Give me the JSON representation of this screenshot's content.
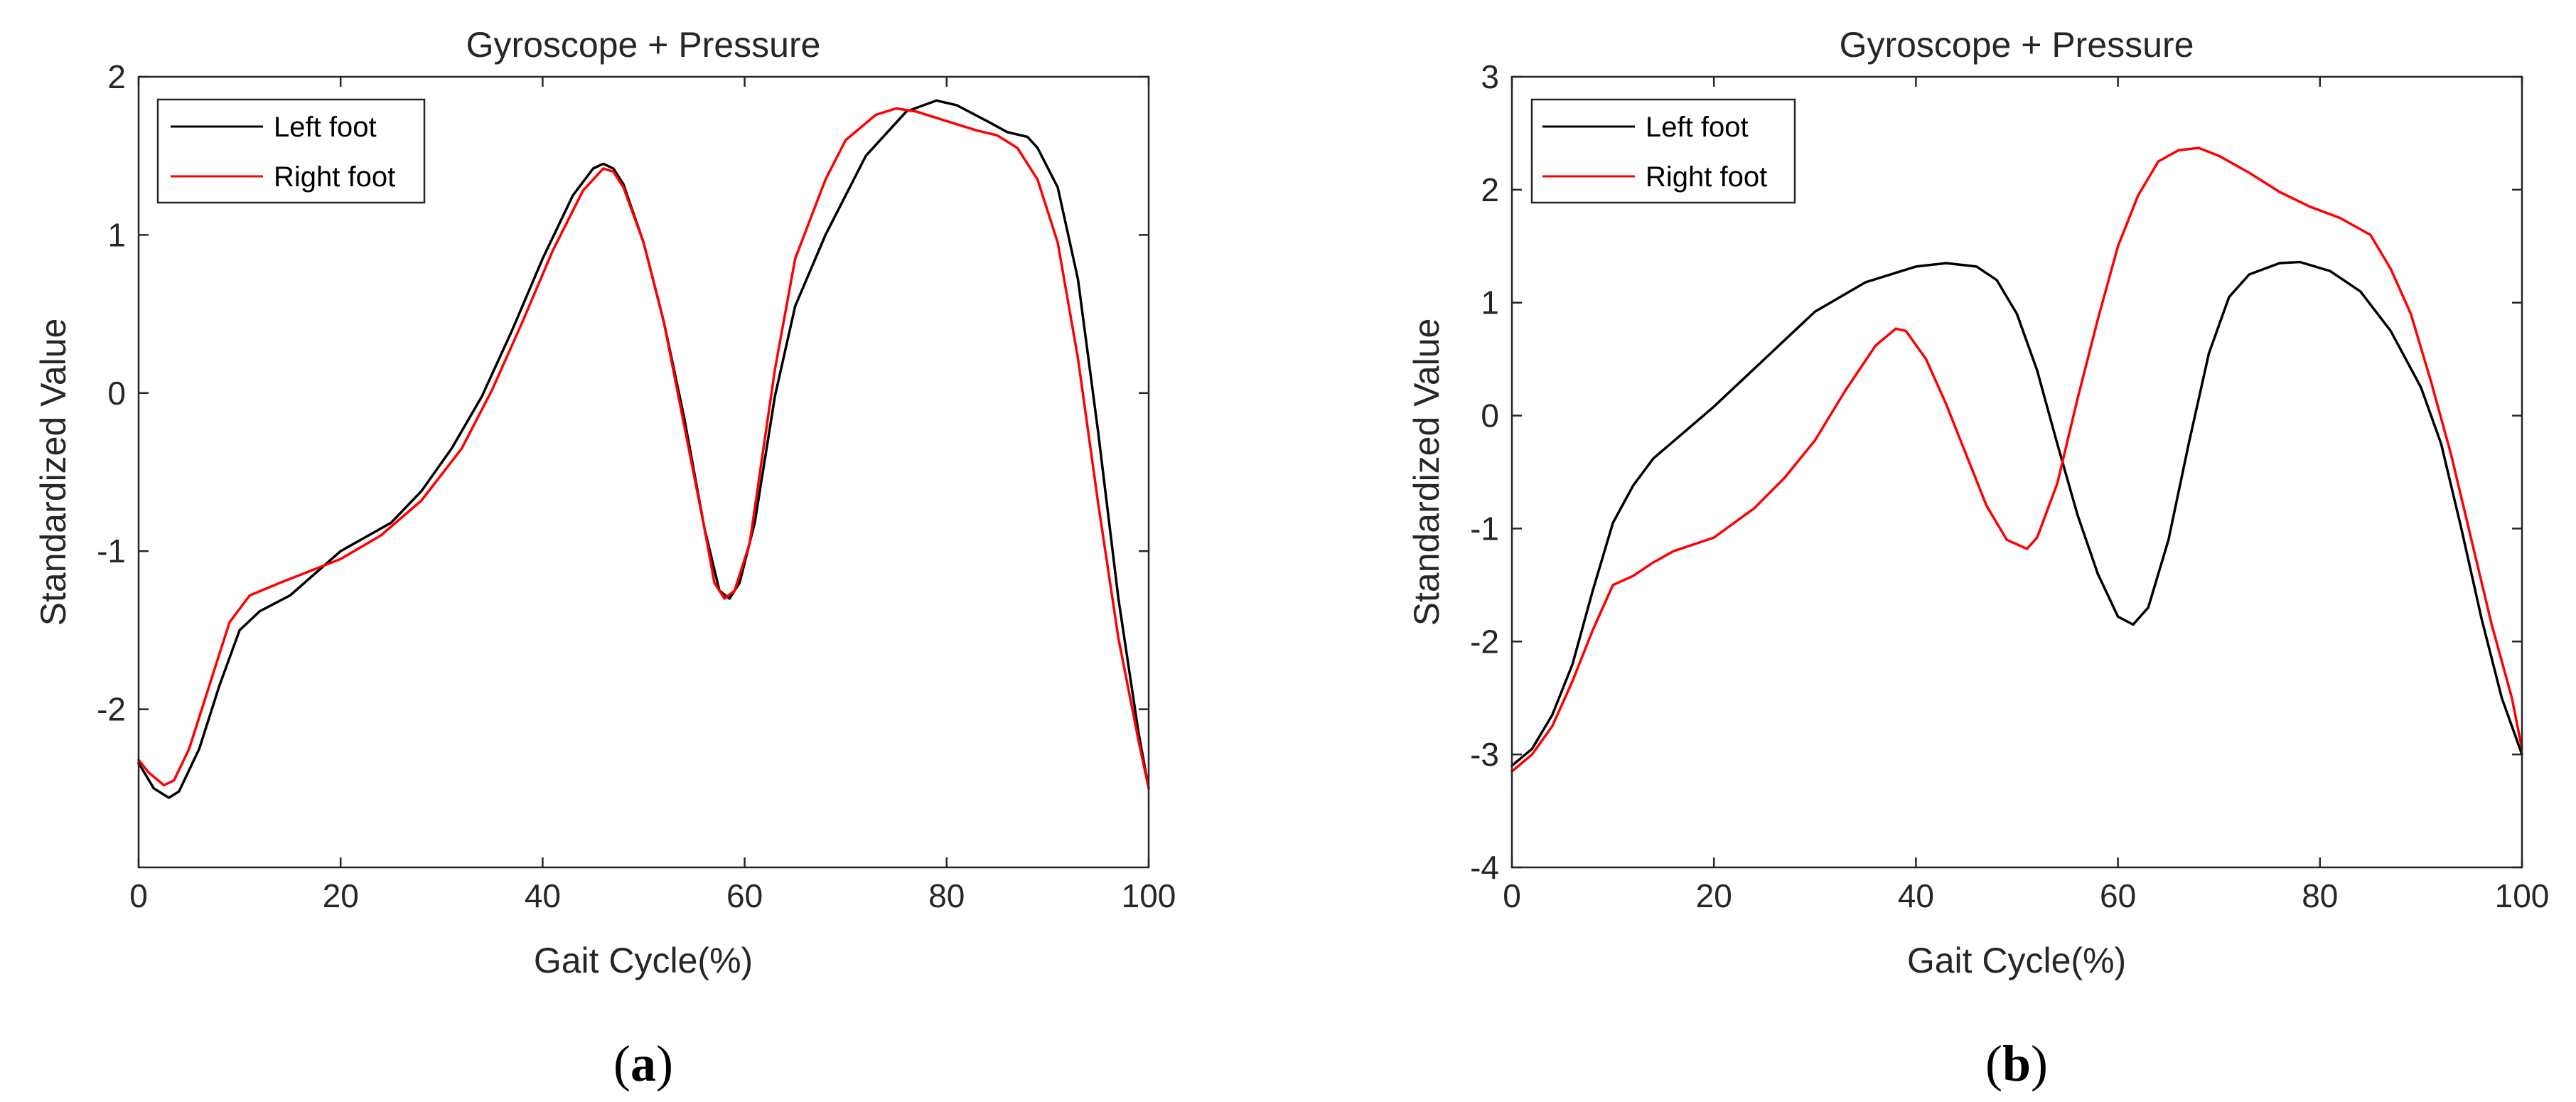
{
  "chart_data": [
    {
      "type": "line",
      "panel": "a",
      "title": "Gyroscope + Pressure",
      "xlabel": "Gait Cycle(%)",
      "ylabel": "Standardized Value",
      "xlim": [
        0,
        100
      ],
      "ylim": [
        -3,
        2
      ],
      "xticks": [
        0,
        20,
        40,
        60,
        80,
        100
      ],
      "yticks": [
        -2,
        -1,
        0,
        1,
        2
      ],
      "xtick_labels": [
        "0",
        "20",
        "40",
        "60",
        "80",
        "100"
      ],
      "ytick_labels": [
        "-2",
        "-1",
        "0",
        "1",
        "2"
      ],
      "legend_position": "top-left",
      "series": [
        {
          "name": "Left foot",
          "color": "#000000",
          "points": [
            [
              0,
              -2.34
            ],
            [
              1.5,
              -2.5
            ],
            [
              3,
              -2.56
            ],
            [
              4,
              -2.52
            ],
            [
              6,
              -2.25
            ],
            [
              8,
              -1.85
            ],
            [
              10,
              -1.5
            ],
            [
              12,
              -1.38
            ],
            [
              15,
              -1.28
            ],
            [
              20,
              -1.0
            ],
            [
              25,
              -0.82
            ],
            [
              28,
              -0.62
            ],
            [
              31,
              -0.35
            ],
            [
              34,
              -0.02
            ],
            [
              37,
              0.4
            ],
            [
              40,
              0.85
            ],
            [
              43,
              1.25
            ],
            [
              45,
              1.42
            ],
            [
              46,
              1.45
            ],
            [
              47,
              1.42
            ],
            [
              48,
              1.32
            ],
            [
              50,
              0.95
            ],
            [
              52,
              0.45
            ],
            [
              54,
              -0.15
            ],
            [
              56,
              -0.85
            ],
            [
              57.5,
              -1.25
            ],
            [
              58.5,
              -1.3
            ],
            [
              59.5,
              -1.2
            ],
            [
              61,
              -0.82
            ],
            [
              63,
              -0.02
            ],
            [
              65,
              0.55
            ],
            [
              68,
              1.0
            ],
            [
              72,
              1.5
            ],
            [
              76,
              1.78
            ],
            [
              79,
              1.85
            ],
            [
              81,
              1.82
            ],
            [
              84,
              1.72
            ],
            [
              86,
              1.65
            ],
            [
              88,
              1.62
            ],
            [
              89,
              1.55
            ],
            [
              91,
              1.3
            ],
            [
              93,
              0.72
            ],
            [
              95,
              -0.25
            ],
            [
              97,
              -1.3
            ],
            [
              99,
              -2.15
            ],
            [
              100,
              -2.5
            ]
          ]
        },
        {
          "name": "Right foot",
          "color": "#ff0000",
          "points": [
            [
              0,
              -2.32
            ],
            [
              1,
              -2.4
            ],
            [
              2.5,
              -2.48
            ],
            [
              3.5,
              -2.45
            ],
            [
              5,
              -2.25
            ],
            [
              7,
              -1.85
            ],
            [
              9,
              -1.45
            ],
            [
              11,
              -1.28
            ],
            [
              14,
              -1.2
            ],
            [
              20,
              -1.05
            ],
            [
              24,
              -0.9
            ],
            [
              28,
              -0.68
            ],
            [
              32,
              -0.35
            ],
            [
              35,
              0.02
            ],
            [
              38,
              0.45
            ],
            [
              41,
              0.9
            ],
            [
              44,
              1.28
            ],
            [
              46,
              1.42
            ],
            [
              47,
              1.4
            ],
            [
              48,
              1.3
            ],
            [
              50,
              0.95
            ],
            [
              52,
              0.45
            ],
            [
              54,
              -0.2
            ],
            [
              56,
              -0.85
            ],
            [
              57,
              -1.2
            ],
            [
              58,
              -1.3
            ],
            [
              59,
              -1.25
            ],
            [
              60.5,
              -0.95
            ],
            [
              63,
              0.15
            ],
            [
              65,
              0.85
            ],
            [
              68,
              1.35
            ],
            [
              70,
              1.6
            ],
            [
              73,
              1.76
            ],
            [
              75,
              1.8
            ],
            [
              77,
              1.78
            ],
            [
              80,
              1.72
            ],
            [
              83,
              1.66
            ],
            [
              85,
              1.63
            ],
            [
              87,
              1.55
            ],
            [
              89,
              1.35
            ],
            [
              91,
              0.95
            ],
            [
              93,
              0.22
            ],
            [
              95,
              -0.7
            ],
            [
              97,
              -1.55
            ],
            [
              99,
              -2.2
            ],
            [
              100,
              -2.5
            ]
          ]
        }
      ]
    },
    {
      "type": "line",
      "panel": "b",
      "title": "Gyroscope + Pressure",
      "xlabel": "Gait Cycle(%)",
      "ylabel": "Standardized Value",
      "xlim": [
        0,
        100
      ],
      "ylim": [
        -4,
        3
      ],
      "xticks": [
        0,
        20,
        40,
        60,
        80,
        100
      ],
      "yticks": [
        -4,
        -3,
        -2,
        -1,
        0,
        1,
        2,
        3
      ],
      "xtick_labels": [
        "0",
        "20",
        "40",
        "60",
        "80",
        "100"
      ],
      "ytick_labels": [
        "-4",
        "-3",
        "-2",
        "-1",
        "0",
        "1",
        "2",
        "3"
      ],
      "legend_position": "top-left",
      "series": [
        {
          "name": "Left foot",
          "color": "#000000",
          "points": [
            [
              0,
              -3.1
            ],
            [
              2,
              -2.95
            ],
            [
              4,
              -2.65
            ],
            [
              6,
              -2.2
            ],
            [
              8,
              -1.55
            ],
            [
              10,
              -0.95
            ],
            [
              12,
              -0.62
            ],
            [
              14,
              -0.38
            ],
            [
              17,
              -0.15
            ],
            [
              20,
              0.08
            ],
            [
              25,
              0.5
            ],
            [
              30,
              0.92
            ],
            [
              35,
              1.18
            ],
            [
              40,
              1.32
            ],
            [
              43,
              1.35
            ],
            [
              46,
              1.32
            ],
            [
              48,
              1.2
            ],
            [
              50,
              0.9
            ],
            [
              52,
              0.4
            ],
            [
              54,
              -0.25
            ],
            [
              56,
              -0.88
            ],
            [
              58,
              -1.4
            ],
            [
              60,
              -1.78
            ],
            [
              61.5,
              -1.85
            ],
            [
              63,
              -1.7
            ],
            [
              65,
              -1.1
            ],
            [
              67,
              -0.25
            ],
            [
              69,
              0.55
            ],
            [
              71,
              1.05
            ],
            [
              73,
              1.25
            ],
            [
              76,
              1.35
            ],
            [
              78,
              1.36
            ],
            [
              81,
              1.28
            ],
            [
              84,
              1.1
            ],
            [
              87,
              0.75
            ],
            [
              90,
              0.25
            ],
            [
              92,
              -0.25
            ],
            [
              94,
              -1.0
            ],
            [
              96,
              -1.8
            ],
            [
              98,
              -2.5
            ],
            [
              100,
              -3.0
            ]
          ]
        },
        {
          "name": "Right foot",
          "color": "#ff0000",
          "points": [
            [
              0,
              -3.15
            ],
            [
              2,
              -3.0
            ],
            [
              4,
              -2.75
            ],
            [
              6,
              -2.35
            ],
            [
              8,
              -1.9
            ],
            [
              10,
              -1.5
            ],
            [
              12,
              -1.42
            ],
            [
              14,
              -1.3
            ],
            [
              16,
              -1.2
            ],
            [
              20,
              -1.08
            ],
            [
              24,
              -0.82
            ],
            [
              27,
              -0.55
            ],
            [
              30,
              -0.22
            ],
            [
              33,
              0.22
            ],
            [
              36,
              0.62
            ],
            [
              38,
              0.77
            ],
            [
              39,
              0.75
            ],
            [
              41,
              0.5
            ],
            [
              43,
              0.1
            ],
            [
              45,
              -0.35
            ],
            [
              47,
              -0.8
            ],
            [
              49,
              -1.1
            ],
            [
              51,
              -1.18
            ],
            [
              52,
              -1.08
            ],
            [
              54,
              -0.6
            ],
            [
              56,
              0.15
            ],
            [
              58,
              0.85
            ],
            [
              60,
              1.5
            ],
            [
              62,
              1.95
            ],
            [
              64,
              2.25
            ],
            [
              66,
              2.35
            ],
            [
              68,
              2.37
            ],
            [
              70,
              2.3
            ],
            [
              73,
              2.15
            ],
            [
              76,
              1.98
            ],
            [
              79,
              1.85
            ],
            [
              82,
              1.75
            ],
            [
              85,
              1.6
            ],
            [
              87,
              1.3
            ],
            [
              89,
              0.9
            ],
            [
              91,
              0.3
            ],
            [
              93,
              -0.35
            ],
            [
              95,
              -1.1
            ],
            [
              97,
              -1.85
            ],
            [
              99,
              -2.5
            ],
            [
              100,
              -2.95
            ]
          ]
        }
      ]
    }
  ],
  "panel_labels": {
    "a": {
      "open": "(",
      "letter": "a",
      "close": ")"
    },
    "b": {
      "open": "(",
      "letter": "b",
      "close": ")"
    }
  }
}
